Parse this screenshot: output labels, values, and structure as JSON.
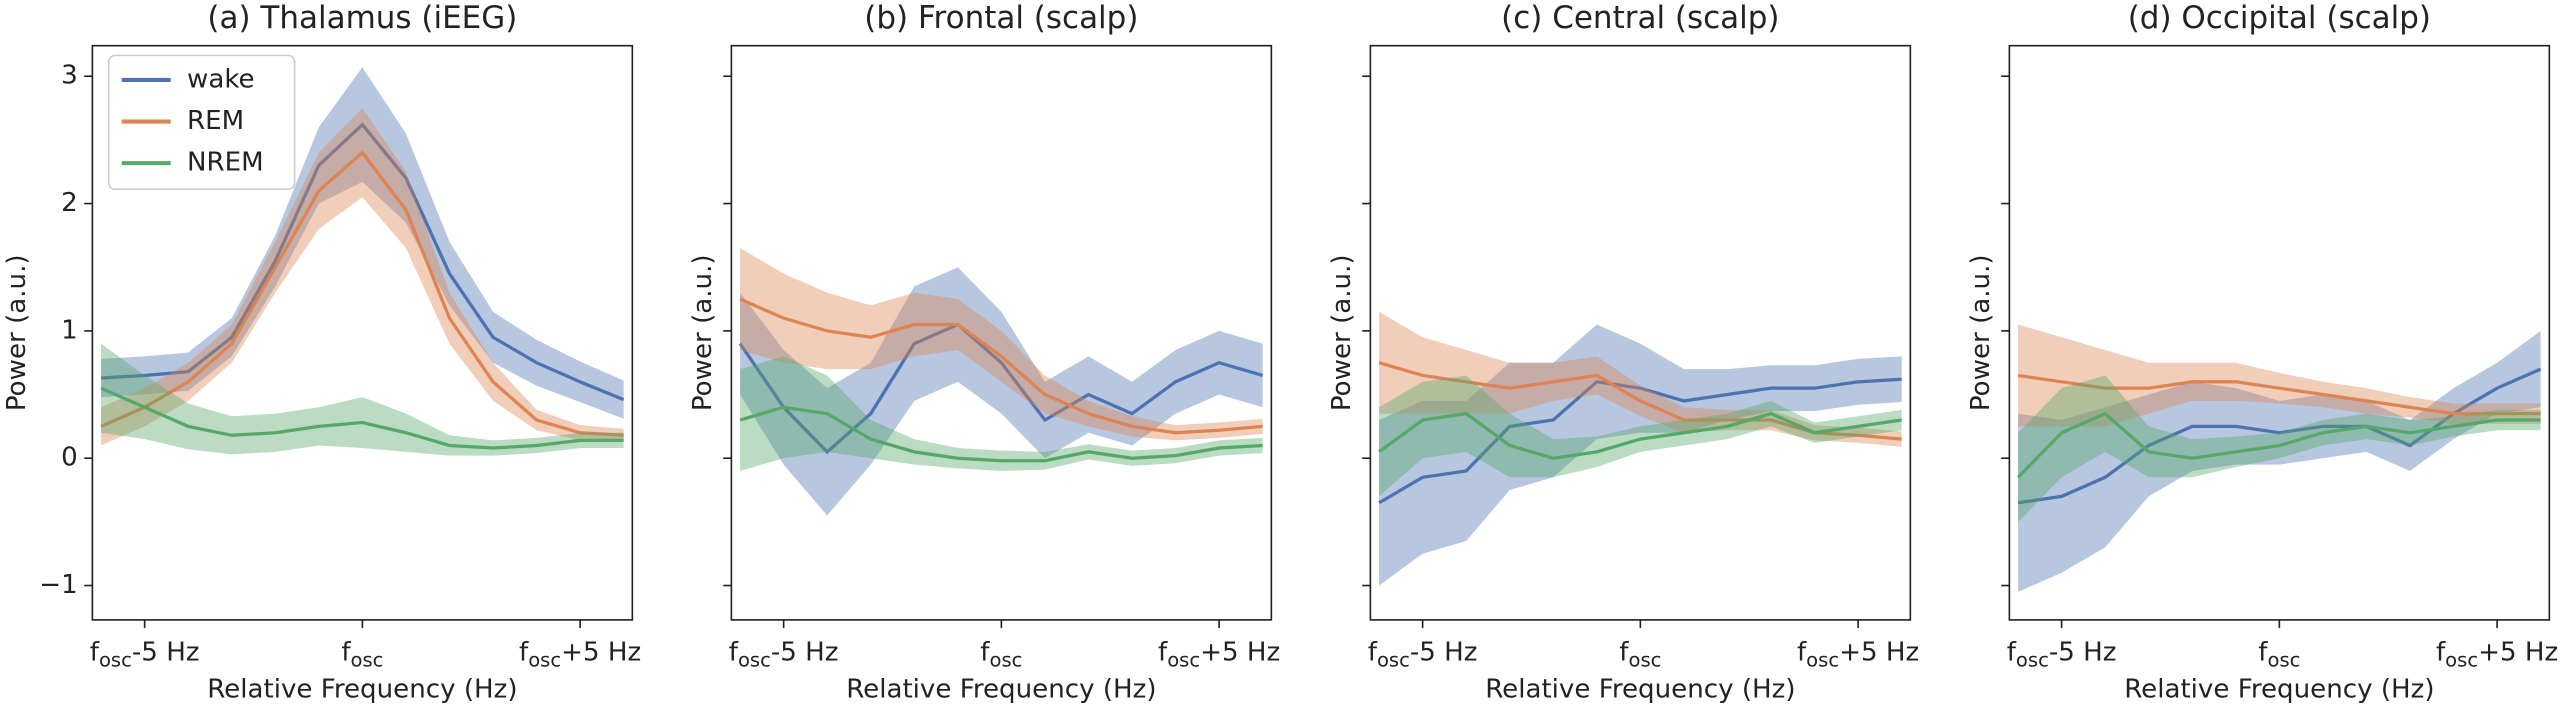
{
  "chart_data": [
    {
      "type": "line",
      "title": "(a) Thalamus (iEEG)",
      "xlabel": "Relative Frequency (Hz)",
      "ylabel": "Power (a.u.)",
      "x": [
        -6,
        -5,
        -4,
        -3,
        -2,
        -1,
        0,
        1,
        2,
        3,
        4,
        5,
        6
      ],
      "xlim": [
        -6.2,
        6.2
      ],
      "xticks": [
        {
          "value": -5,
          "label": "fosc-5 Hz"
        },
        {
          "value": 0,
          "label": "fosc"
        },
        {
          "value": 5,
          "label": "fosc+5 Hz"
        }
      ],
      "ylim": [
        -1.27,
        3.24
      ],
      "yticks": [
        {
          "value": -1,
          "label": "−1"
        },
        0,
        1,
        2,
        3
      ],
      "legend": "upper left",
      "series": [
        {
          "name": "wake",
          "color": "#4c72b0",
          "values": [
            0.63,
            0.65,
            0.68,
            0.95,
            1.55,
            2.3,
            2.62,
            2.2,
            1.45,
            0.95,
            0.75,
            0.6,
            0.46
          ],
          "errors": [
            0.15,
            0.15,
            0.15,
            0.15,
            0.2,
            0.3,
            0.45,
            0.35,
            0.25,
            0.2,
            0.18,
            0.16,
            0.15
          ]
        },
        {
          "name": "REM",
          "color": "#dd8452",
          "values": [
            0.25,
            0.4,
            0.6,
            0.9,
            1.5,
            2.1,
            2.4,
            1.95,
            1.1,
            0.6,
            0.3,
            0.2,
            0.18
          ],
          "errors": [
            0.15,
            0.15,
            0.15,
            0.15,
            0.2,
            0.3,
            0.35,
            0.3,
            0.2,
            0.15,
            0.08,
            0.06,
            0.05
          ]
        },
        {
          "name": "NREM",
          "color": "#55a868",
          "values": [
            0.55,
            0.4,
            0.25,
            0.18,
            0.2,
            0.25,
            0.28,
            0.2,
            0.1,
            0.08,
            0.1,
            0.14,
            0.14
          ],
          "errors": [
            0.35,
            0.25,
            0.18,
            0.15,
            0.15,
            0.15,
            0.2,
            0.15,
            0.08,
            0.06,
            0.06,
            0.06,
            0.06
          ]
        }
      ]
    },
    {
      "type": "line",
      "title": "(b) Frontal (scalp)",
      "xlabel": "Relative Frequency (Hz)",
      "ylabel": "Power (a.u.)",
      "x": [
        -6,
        -5,
        -4,
        -3,
        -2,
        -1,
        0,
        1,
        2,
        3,
        4,
        5,
        6
      ],
      "xlim": [
        -6.2,
        6.2
      ],
      "xticks": [
        {
          "value": -5,
          "label": "fosc-5 Hz"
        },
        {
          "value": 0,
          "label": "fosc"
        },
        {
          "value": 5,
          "label": "fosc+5 Hz"
        }
      ],
      "ylim": [
        -1.27,
        3.24
      ],
      "series": [
        {
          "color": "#4c72b0",
          "values": [
            0.9,
            0.4,
            0.05,
            0.35,
            0.9,
            1.05,
            0.75,
            0.3,
            0.5,
            0.35,
            0.6,
            0.75,
            0.65
          ],
          "errors": [
            0.4,
            0.45,
            0.5,
            0.4,
            0.45,
            0.45,
            0.4,
            0.3,
            0.3,
            0.25,
            0.25,
            0.25,
            0.25
          ]
        },
        {
          "color": "#dd8452",
          "values": [
            1.25,
            1.1,
            1.0,
            0.95,
            1.05,
            1.05,
            0.8,
            0.5,
            0.35,
            0.25,
            0.2,
            0.22,
            0.25
          ],
          "errors": [
            0.4,
            0.35,
            0.3,
            0.25,
            0.25,
            0.2,
            0.2,
            0.15,
            0.1,
            0.08,
            0.06,
            0.06,
            0.06
          ]
        },
        {
          "color": "#55a868",
          "values": [
            0.3,
            0.4,
            0.35,
            0.15,
            0.05,
            0.0,
            -0.02,
            -0.02,
            0.05,
            0.0,
            0.02,
            0.08,
            0.1
          ],
          "errors": [
            0.4,
            0.4,
            0.3,
            0.15,
            0.1,
            0.08,
            0.08,
            0.07,
            0.06,
            0.06,
            0.06,
            0.06,
            0.06
          ]
        }
      ]
    },
    {
      "type": "line",
      "title": "(c) Central (scalp)",
      "xlabel": "Relative Frequency (Hz)",
      "ylabel": "Power (a.u.)",
      "x": [
        -6,
        -5,
        -4,
        -3,
        -2,
        -1,
        0,
        1,
        2,
        3,
        4,
        5,
        6
      ],
      "xlim": [
        -6.2,
        6.2
      ],
      "xticks": [
        {
          "value": -5,
          "label": "fosc-5 Hz"
        },
        {
          "value": 0,
          "label": "fosc"
        },
        {
          "value": 5,
          "label": "fosc+5 Hz"
        }
      ],
      "ylim": [
        -1.27,
        3.24
      ],
      "series": [
        {
          "color": "#4c72b0",
          "values": [
            -0.35,
            -0.15,
            -0.1,
            0.25,
            0.3,
            0.6,
            0.55,
            0.45,
            0.5,
            0.55,
            0.55,
            0.6,
            0.62
          ],
          "errors": [
            0.65,
            0.6,
            0.55,
            0.5,
            0.45,
            0.45,
            0.35,
            0.25,
            0.2,
            0.18,
            0.18,
            0.18,
            0.18
          ]
        },
        {
          "color": "#dd8452",
          "values": [
            0.75,
            0.65,
            0.6,
            0.55,
            0.6,
            0.65,
            0.45,
            0.3,
            0.3,
            0.3,
            0.2,
            0.18,
            0.15
          ],
          "errors": [
            0.4,
            0.3,
            0.25,
            0.2,
            0.15,
            0.15,
            0.12,
            0.1,
            0.08,
            0.08,
            0.06,
            0.06,
            0.06
          ]
        },
        {
          "color": "#55a868",
          "values": [
            0.05,
            0.3,
            0.35,
            0.1,
            0.0,
            0.05,
            0.15,
            0.2,
            0.25,
            0.35,
            0.2,
            0.25,
            0.3
          ],
          "errors": [
            0.35,
            0.3,
            0.3,
            0.25,
            0.15,
            0.12,
            0.1,
            0.1,
            0.1,
            0.1,
            0.08,
            0.08,
            0.08
          ]
        }
      ]
    },
    {
      "type": "line",
      "title": "(d) Occipital (scalp)",
      "xlabel": "Relative Frequency (Hz)",
      "ylabel": "Power (a.u.)",
      "x": [
        -6,
        -5,
        -4,
        -3,
        -2,
        -1,
        0,
        1,
        2,
        3,
        4,
        5,
        6
      ],
      "xlim": [
        -6.2,
        6.2
      ],
      "xticks": [
        {
          "value": -5,
          "label": "fosc-5 Hz"
        },
        {
          "value": 0,
          "label": "fosc"
        },
        {
          "value": 5,
          "label": "fosc+5 Hz"
        }
      ],
      "ylim": [
        -1.27,
        3.24
      ],
      "series": [
        {
          "color": "#4c72b0",
          "values": [
            -0.35,
            -0.3,
            -0.15,
            0.1,
            0.25,
            0.25,
            0.2,
            0.25,
            0.25,
            0.1,
            0.35,
            0.55,
            0.7
          ],
          "errors": [
            0.7,
            0.6,
            0.55,
            0.4,
            0.35,
            0.3,
            0.25,
            0.25,
            0.2,
            0.2,
            0.2,
            0.2,
            0.3
          ]
        },
        {
          "color": "#dd8452",
          "values": [
            0.65,
            0.6,
            0.55,
            0.55,
            0.6,
            0.6,
            0.55,
            0.5,
            0.45,
            0.4,
            0.35,
            0.35,
            0.35
          ],
          "errors": [
            0.4,
            0.35,
            0.3,
            0.2,
            0.15,
            0.15,
            0.12,
            0.1,
            0.1,
            0.08,
            0.08,
            0.08,
            0.08
          ]
        },
        {
          "color": "#55a868",
          "values": [
            -0.15,
            0.2,
            0.35,
            0.05,
            0.0,
            0.05,
            0.1,
            0.2,
            0.25,
            0.2,
            0.25,
            0.3,
            0.3
          ],
          "errors": [
            0.35,
            0.35,
            0.3,
            0.2,
            0.15,
            0.12,
            0.1,
            0.1,
            0.1,
            0.1,
            0.08,
            0.08,
            0.08
          ]
        }
      ]
    }
  ]
}
